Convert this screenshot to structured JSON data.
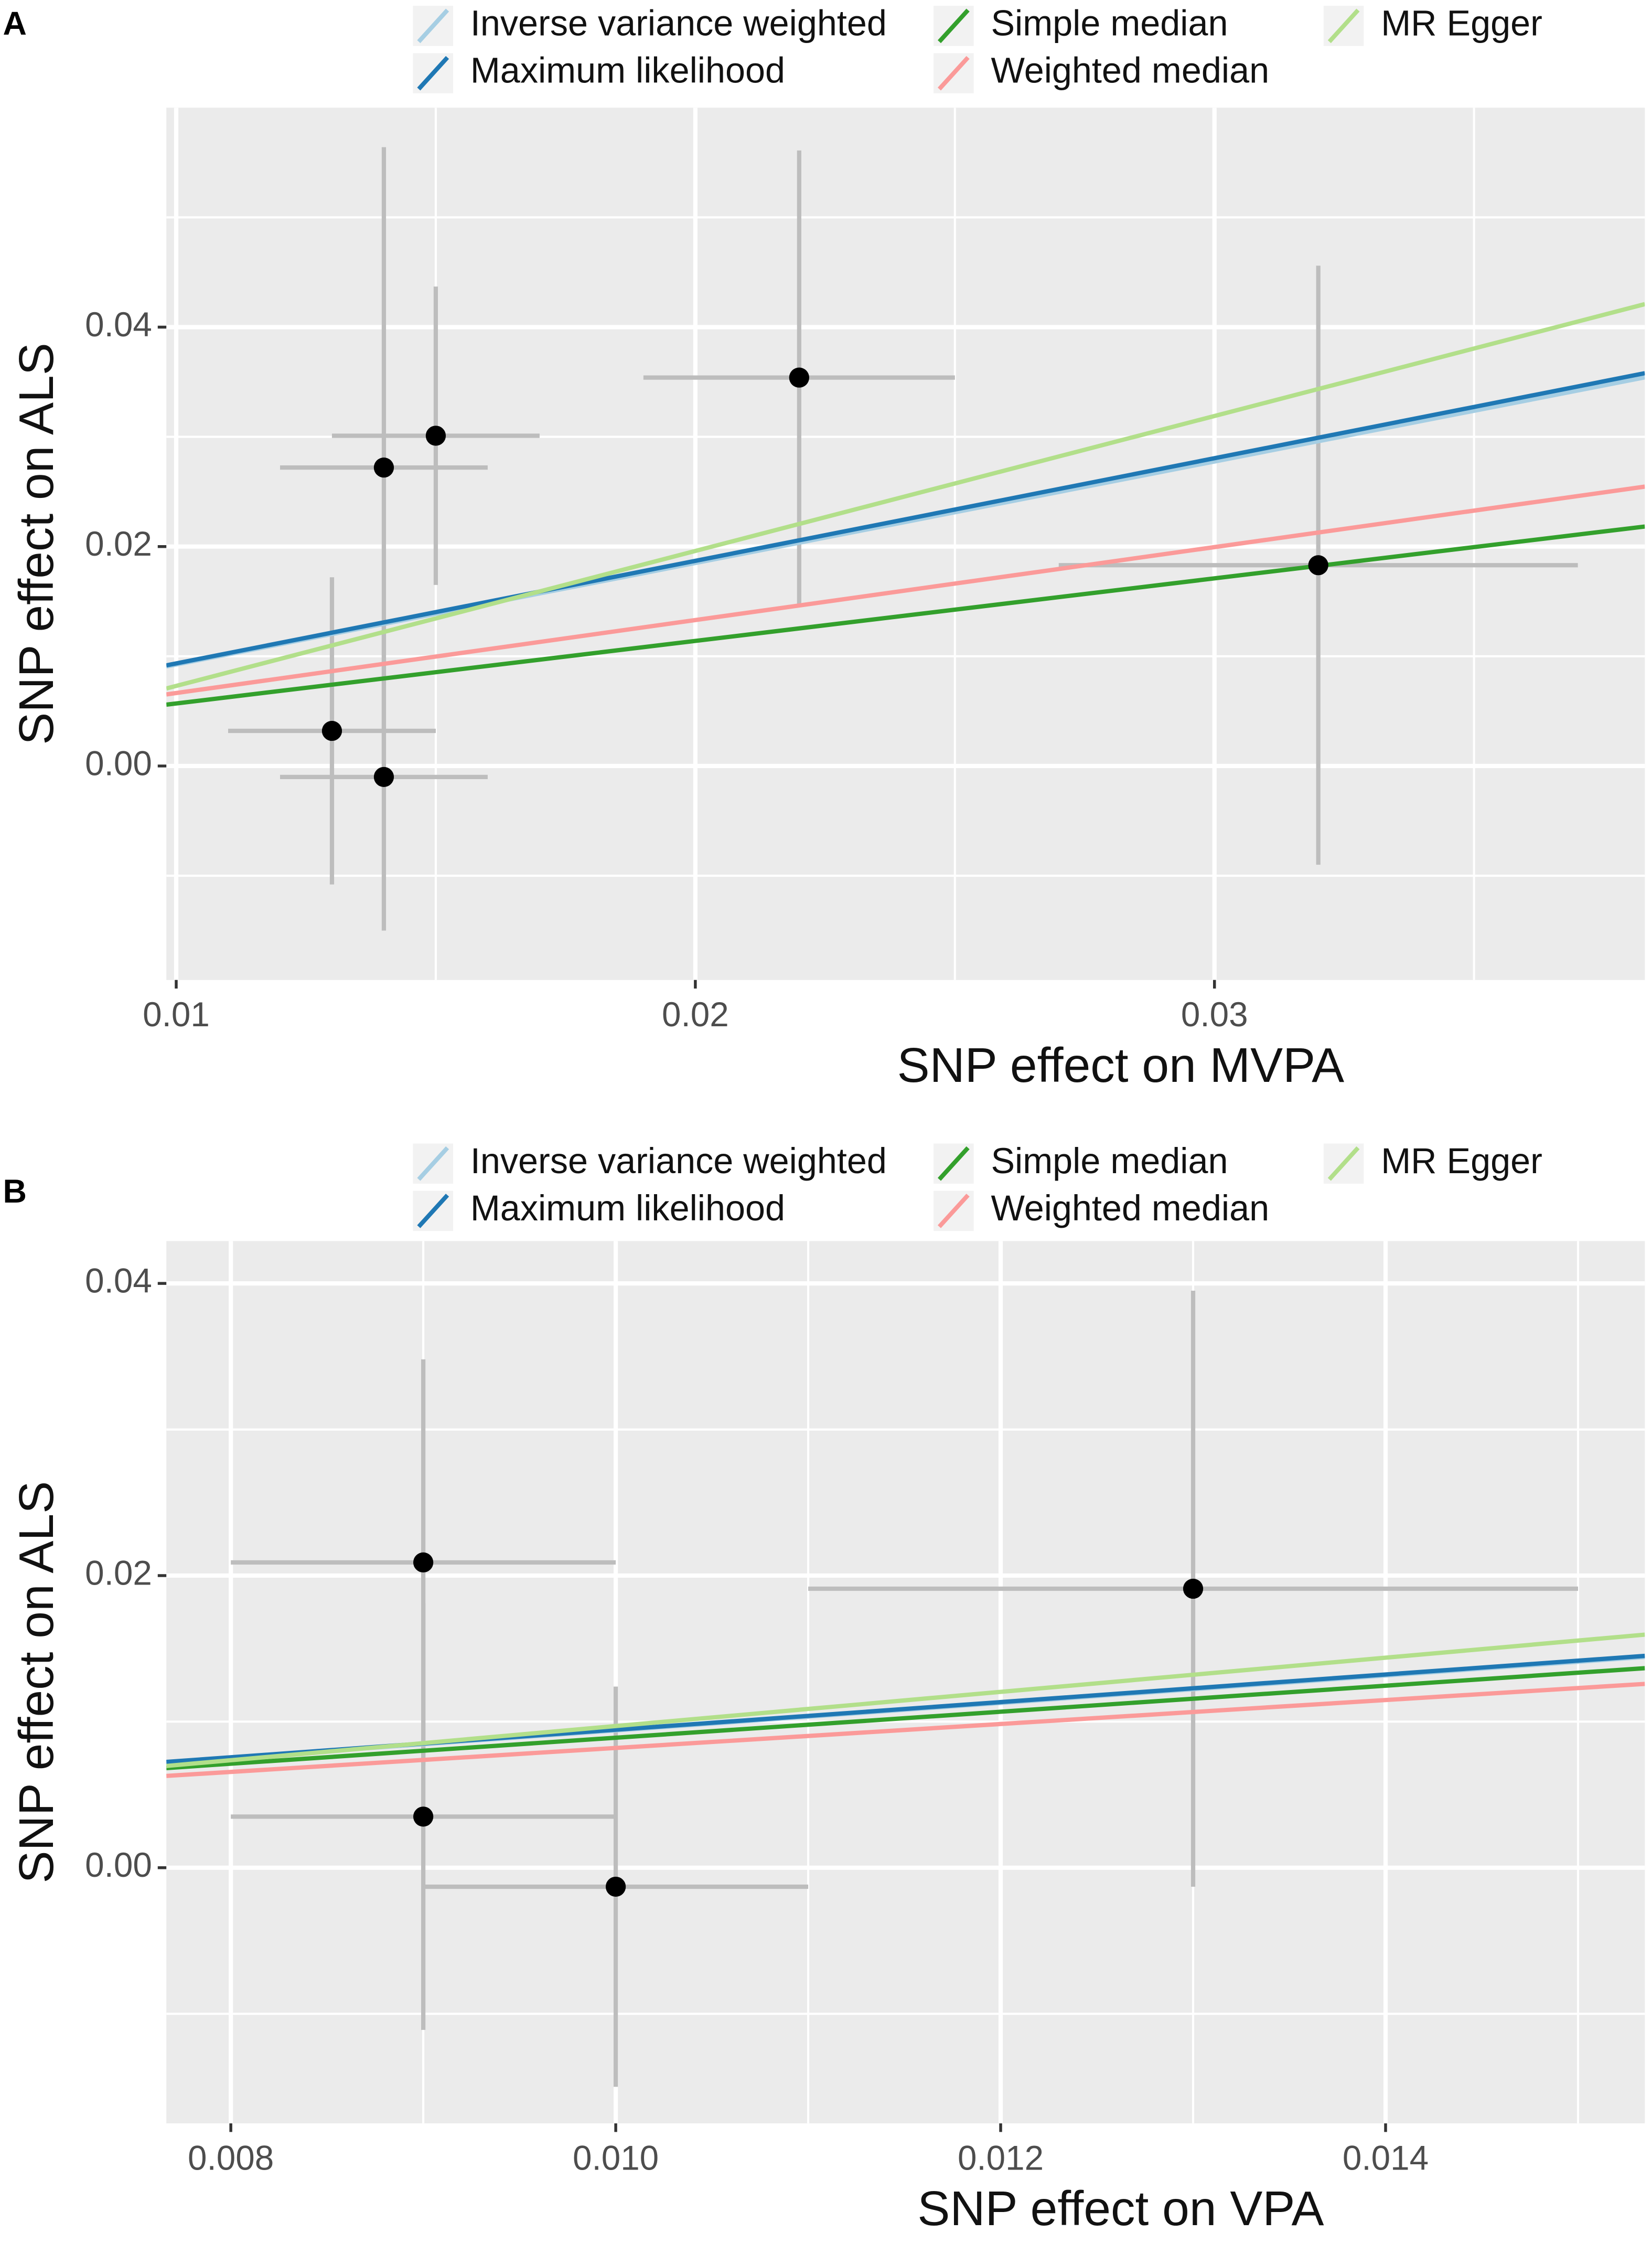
{
  "chart_data": [
    {
      "type": "scatter",
      "panel": "A",
      "xlabel": "SNP effect on MVPA",
      "ylabel": "SNP effect on ALS",
      "x": [
        0.013,
        0.014,
        0.014,
        0.015,
        0.022,
        0.032
      ],
      "values": [
        0.0032,
        0.0272,
        -0.001,
        0.0301,
        0.0354,
        0.0183
      ],
      "xerr": [
        0.002,
        0.002,
        0.002,
        0.002,
        0.003,
        0.005
      ],
      "yerr": [
        0.014,
        0.0292,
        0.014,
        0.0136,
        0.0207,
        0.0273
      ],
      "color": "#000000",
      "error_color": "#bdbdbd",
      "lines": [
        {
          "name": "Inverse variance weighted",
          "color": "#a6cee3",
          "slope": 0.925,
          "intercept": 0
        },
        {
          "name": "Maximum likelihood",
          "color": "#1f78b4",
          "slope": 0.935,
          "intercept": 0
        },
        {
          "name": "Simple median",
          "color": "#33a02c",
          "slope": 0.57,
          "intercept": 0
        },
        {
          "name": "Weighted median",
          "color": "#fb9a99",
          "slope": 0.665,
          "intercept": 0
        },
        {
          "name": "MR Egger",
          "color": "#b2df8a",
          "slope": 1.23,
          "intercept": -0.005
        }
      ],
      "xlim": [
        0.00981,
        0.03829
      ],
      "ylim": [
        -0.0195,
        0.06
      ],
      "xticks": [
        0.01,
        0.02,
        0.03
      ],
      "yticks": [
        {
          "value": 0,
          "label": "0.00"
        },
        0.02,
        0.04
      ],
      "xminor": [
        0.015,
        0.025,
        0.035
      ],
      "yminor": [
        -0.01,
        0.01,
        0.03,
        0.05
      ],
      "grid": true,
      "legend": "top"
    },
    {
      "type": "scatter",
      "panel": "B",
      "xlabel": "SNP effect on VPA",
      "ylabel": "SNP effect on ALS",
      "x": [
        0.009,
        0.009,
        0.01,
        0.013
      ],
      "values": [
        0.0209,
        0.0035,
        -0.0013,
        0.0191
      ],
      "xerr": [
        0.001,
        0.001,
        0.001,
        0.002
      ],
      "yerr": [
        0.0139,
        0.0146,
        0.0137,
        0.0204
      ],
      "color": "#000000",
      "error_color": "#bdbdbd",
      "lines": [
        {
          "name": "Inverse variance weighted",
          "color": "#a6cee3",
          "slope": 0.94,
          "intercept": 0
        },
        {
          "name": "Maximum likelihood",
          "color": "#1f78b4",
          "slope": 0.945,
          "intercept": 0
        },
        {
          "name": "Simple median",
          "color": "#33a02c",
          "slope": 0.89,
          "intercept": 0
        },
        {
          "name": "Weighted median",
          "color": "#fb9a99",
          "slope": 0.82,
          "intercept": 0
        },
        {
          "name": "MR Egger",
          "color": "#b2df8a",
          "slope": 1.17,
          "intercept": -0.002
        }
      ],
      "xlim": [
        0.007665,
        0.015347
      ],
      "ylim": [
        -0.0175,
        0.0429
      ],
      "xticks": [
        0.008,
        {
          "value": 0.01,
          "label": "0.010"
        },
        0.012,
        0.014
      ],
      "yticks": [
        {
          "value": 0,
          "label": "0.00"
        },
        0.02,
        0.04
      ],
      "xminor": [
        0.009,
        0.011,
        0.013,
        0.015
      ],
      "yminor": [
        -0.01,
        0.01,
        0.03
      ],
      "grid": true,
      "legend": "top"
    }
  ]
}
